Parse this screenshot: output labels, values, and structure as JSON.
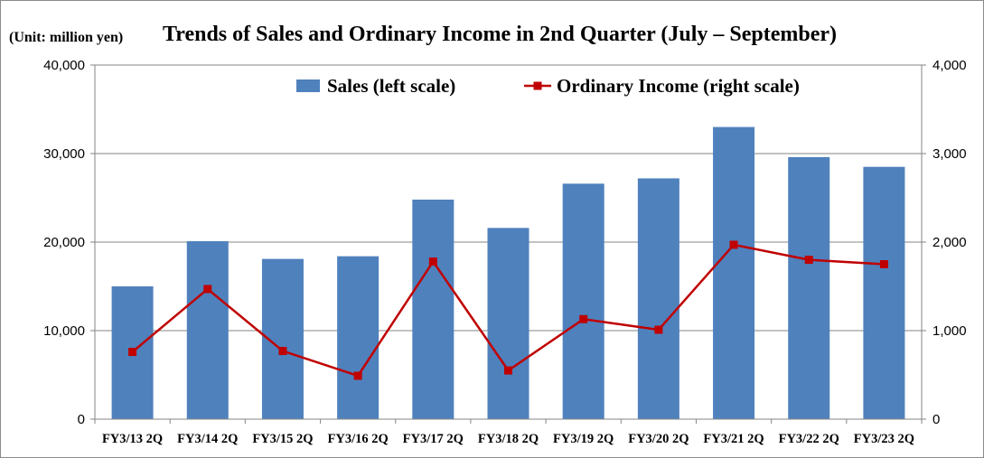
{
  "chart_data": {
    "type": "bar",
    "title": "Trends of Sales and Ordinary Income in 2nd Quarter (July – September)",
    "unit_label": "(Unit: million yen)",
    "categories": [
      "FY3/13 2Q",
      "FY3/14 2Q",
      "FY3/15 2Q",
      "FY3/16 2Q",
      "FY3/17 2Q",
      "FY3/18 2Q",
      "FY3/19 2Q",
      "FY3/20 2Q",
      "FY3/21 2Q",
      "FY3/22 2Q",
      "FY3/23 2Q"
    ],
    "series": [
      {
        "name": "Sales (left scale)",
        "type": "bar",
        "axis": "left",
        "color": "#4f81bd",
        "values": [
          15000,
          20100,
          18100,
          18400,
          24800,
          21600,
          26600,
          27200,
          33000,
          29600,
          28500
        ]
      },
      {
        "name": "Ordinary Income (right scale)",
        "type": "line",
        "axis": "right",
        "color": "#c00000",
        "values": [
          760,
          1470,
          770,
          490,
          1780,
          550,
          1130,
          1010,
          1970,
          1800,
          1750
        ]
      }
    ],
    "ylim_left": [
      0,
      40000
    ],
    "ylim_right": [
      0,
      4000
    ],
    "yticks_left": [
      "0",
      "10,000",
      "20,000",
      "30,000",
      "40,000"
    ],
    "yticks_right": [
      "0",
      "1,000",
      "2,000",
      "3,000",
      "4,000"
    ],
    "grid": "horizontal",
    "legend_position": "top"
  }
}
